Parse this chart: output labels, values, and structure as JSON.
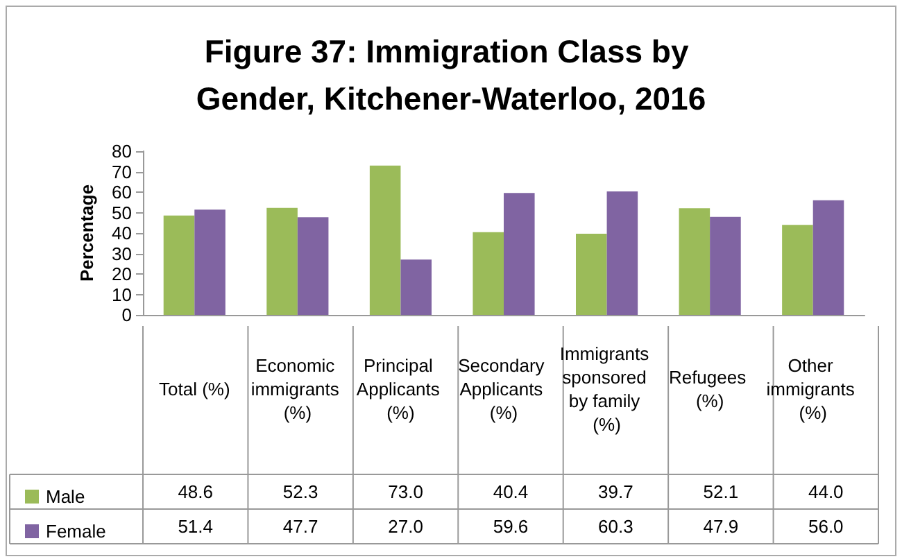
{
  "chart_data": {
    "type": "bar",
    "title": "Figure 37: Immigration Class by Gender, Kitchener-Waterloo, 2016",
    "ylabel": "Percentage",
    "categories": [
      "Total (%)",
      "Economic immigrants (%)",
      "Principal Applicants (%)",
      "Secondary Applicants (%)",
      "Immigrants sponsored by family (%)",
      "Refugees (%)",
      "Other immigrants (%)"
    ],
    "series": [
      {
        "name": "Male",
        "color": "#9bbb59",
        "values": [
          48.6,
          52.3,
          73.0,
          40.4,
          39.7,
          52.1,
          44.0
        ],
        "value_labels": [
          "48.6",
          "52.3",
          "73.0",
          "40.4",
          "39.7",
          "52.1",
          "44.0"
        ]
      },
      {
        "name": "Female",
        "color": "#8064a2",
        "values": [
          51.4,
          47.7,
          27.0,
          59.6,
          60.3,
          47.9,
          56.0
        ],
        "value_labels": [
          "51.4",
          "47.7",
          "27.0",
          "59.6",
          "60.3",
          "47.9",
          "56.0"
        ]
      }
    ],
    "ylim": [
      0,
      80
    ],
    "yticks": [
      0,
      10,
      20,
      30,
      40,
      50,
      60,
      70,
      80
    ],
    "grid": false,
    "legend": "bottom"
  }
}
